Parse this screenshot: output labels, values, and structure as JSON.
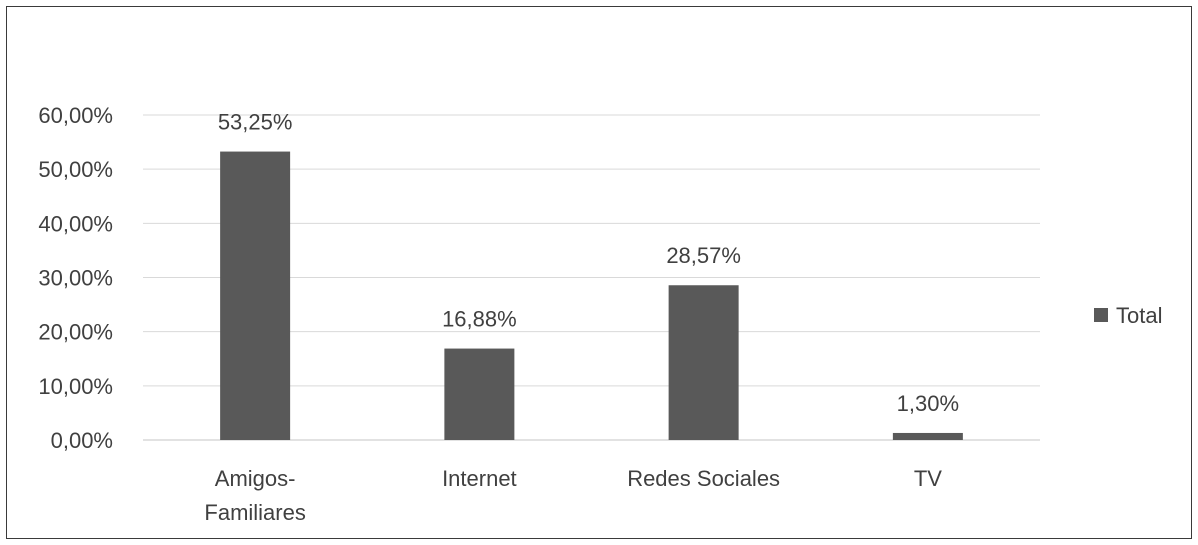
{
  "chart_data": {
    "type": "bar",
    "categories": [
      [
        "Amigos-",
        "Familiares"
      ],
      [
        "Internet"
      ],
      [
        "Redes Sociales"
      ],
      [
        "TV"
      ]
    ],
    "series": [
      {
        "name": "Total",
        "values": [
          53.25,
          16.88,
          28.57,
          1.3
        ]
      }
    ],
    "data_labels": [
      "53,25%",
      "16,88%",
      "28,57%",
      "1,30%"
    ],
    "y_ticks": [
      "0,00%",
      "10,00%",
      "20,00%",
      "30,00%",
      "40,00%",
      "50,00%",
      "60,00%"
    ],
    "ylim": [
      0,
      60
    ],
    "grid": true,
    "legend_position": "right",
    "bar_color": "#595959",
    "grid_color": "#d9d9d9",
    "text_color": "#404040"
  }
}
